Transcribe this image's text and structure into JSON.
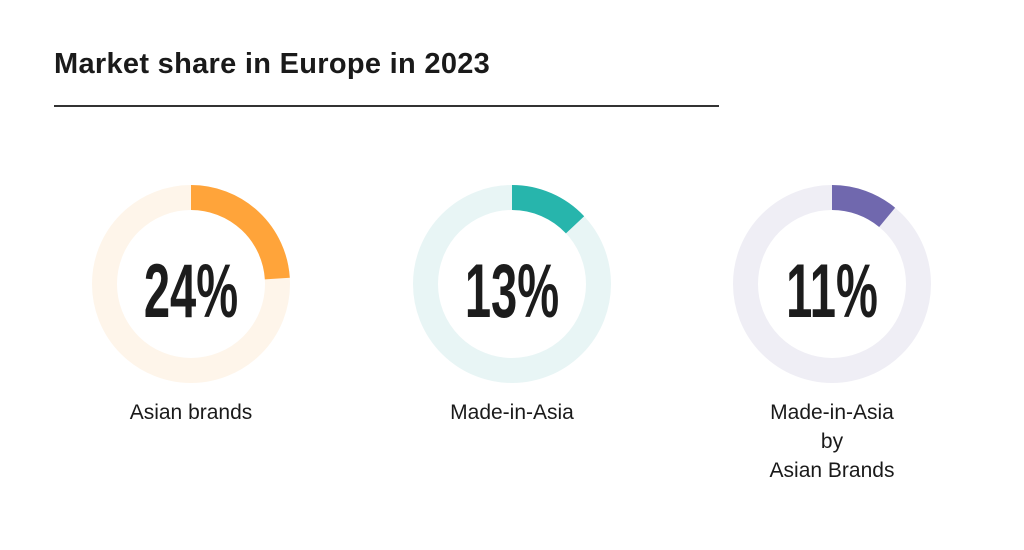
{
  "title": "Market share in Europe in 2023",
  "chart_data": [
    {
      "type": "pie",
      "variant": "donut",
      "value": 24,
      "unit": "%",
      "display": "24%",
      "label": "Asian brands",
      "color": "#FFA43A",
      "track_color": "#FEF5EA"
    },
    {
      "type": "pie",
      "variant": "donut",
      "value": 13,
      "unit": "%",
      "display": "13%",
      "label": "Made-in-Asia",
      "color": "#27B5AC",
      "track_color": "#E8F5F5"
    },
    {
      "type": "pie",
      "variant": "donut",
      "value": 11,
      "unit": "%",
      "display": "11%",
      "label_lines": [
        "Made-in-Asia",
        "by",
        "Asian Brands"
      ],
      "color": "#7068AE",
      "track_color": "#EFEEF5"
    }
  ]
}
